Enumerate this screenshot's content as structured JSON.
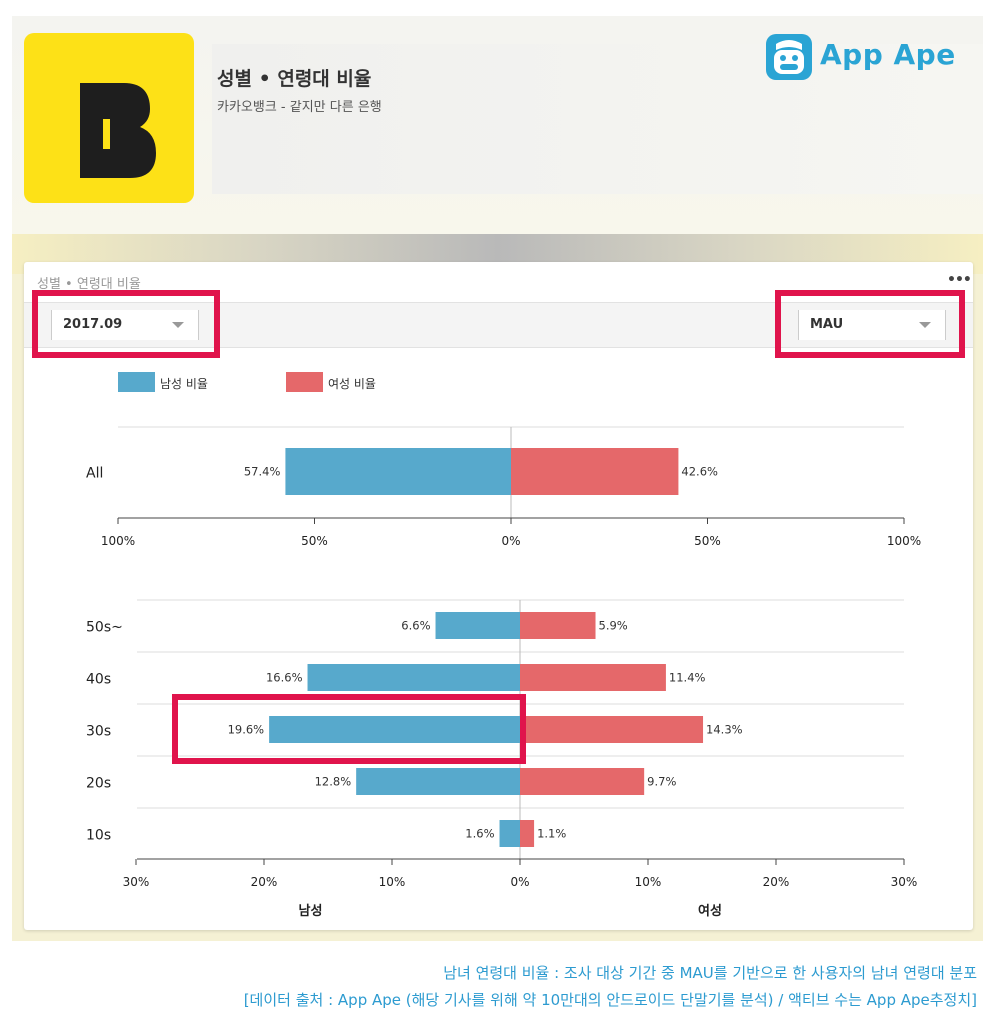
{
  "header": {
    "title": "성별 • 연령대 비율",
    "subtitle": "카카오뱅크 - 같지만 다른 은행",
    "brand": "App Ape",
    "app_icon_letter": "B",
    "app_icon_color": "#fde117"
  },
  "card": {
    "title": "성별 • 연령대 비율",
    "more": "•••",
    "period_value": "2017.09",
    "metric_value": "MAU"
  },
  "colors": {
    "male": "#57a9cc",
    "female": "#e5686a",
    "highlight": "#e0144c",
    "brand": "#2aa4d4"
  },
  "chart_data": [
    {
      "type": "bar",
      "orientation": "horizontal-diverging",
      "categories": [
        "All"
      ],
      "series": [
        {
          "name": "남성 비율",
          "values": [
            57.4
          ]
        },
        {
          "name": "여성 비율",
          "values": [
            42.6
          ]
        }
      ],
      "data_labels": {
        "male": [
          "57.4%"
        ],
        "female": [
          "42.6%"
        ]
      },
      "xlim": [
        -100,
        100
      ],
      "ticks": [
        "100%",
        "50%",
        "0%",
        "50%",
        "100%"
      ],
      "legend": "top-left"
    },
    {
      "type": "bar",
      "orientation": "horizontal-diverging",
      "categories": [
        "50s~",
        "40s",
        "30s",
        "20s",
        "10s"
      ],
      "series": [
        {
          "name": "남성",
          "values": [
            6.6,
            16.6,
            19.6,
            12.8,
            1.6
          ]
        },
        {
          "name": "여성",
          "values": [
            5.9,
            11.4,
            14.3,
            9.7,
            1.1
          ]
        }
      ],
      "data_labels": {
        "male": [
          "6.6%",
          "16.6%",
          "19.6%",
          "12.8%",
          "1.6%"
        ],
        "female": [
          "5.9%",
          "11.4%",
          "14.3%",
          "9.7%",
          "1.1%"
        ]
      },
      "xlim": [
        -30,
        30
      ],
      "ticks": [
        "30%",
        "20%",
        "10%",
        "0%",
        "10%",
        "20%",
        "30%"
      ],
      "xlabel_left": "남성",
      "xlabel_right": "여성",
      "highlighted_category": "30s"
    }
  ],
  "captions": [
    "남녀 연령대 비율 : 조사 대상 기간 중 MAU를 기반으로 한 사용자의 남녀 연령대 분포",
    "[데이터 출처 : App Ape (해당 기사를 위해 약 10만대의 안드로이드 단말기를 분석) / 액티브 수는 App Ape추정치]"
  ]
}
